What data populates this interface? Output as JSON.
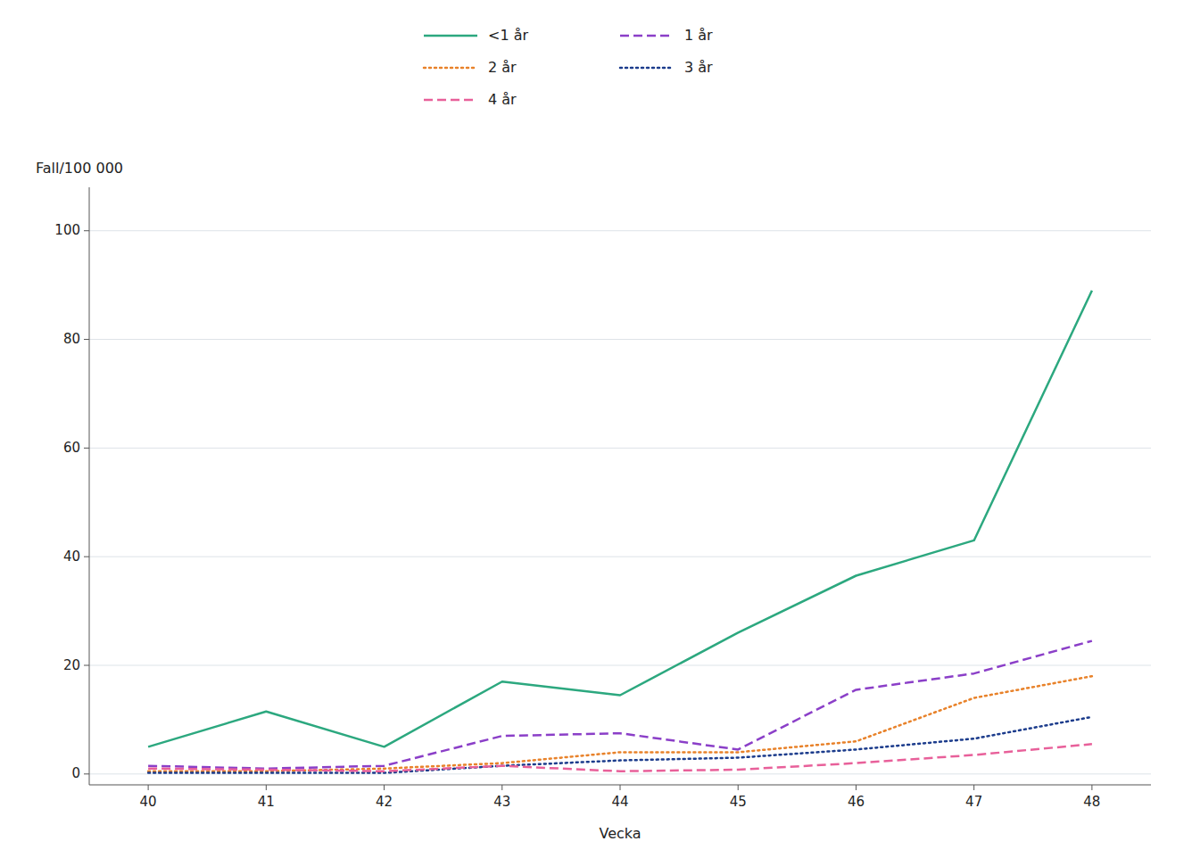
{
  "chart_data": {
    "type": "line",
    "xlabel": "Vecka",
    "ylabel": "Fall/100 000",
    "x": [
      40,
      41,
      42,
      43,
      44,
      45,
      46,
      47,
      48
    ],
    "series": [
      {
        "name": "<1 år",
        "color": "#2ca87f",
        "line_style": "solid",
        "values": [
          5.0,
          11.5,
          5.0,
          17.0,
          14.5,
          26.0,
          36.5,
          43.0,
          89.0
        ]
      },
      {
        "name": "1 år",
        "color": "#8B3FC8",
        "line_style": "dashed",
        "values": [
          1.5,
          1.0,
          1.5,
          7.0,
          7.5,
          4.5,
          15.5,
          18.5,
          24.5
        ]
      },
      {
        "name": "2 år",
        "color": "#E8822A",
        "line_style": "dotted",
        "values": [
          0.5,
          0.5,
          1.0,
          2.0,
          4.0,
          4.0,
          6.0,
          14.0,
          18.0
        ]
      },
      {
        "name": "3 år",
        "color": "#1C3C8C",
        "line_style": "dotted",
        "values": [
          0.2,
          0.2,
          0.2,
          1.5,
          2.5,
          3.0,
          4.5,
          6.5,
          10.5
        ]
      },
      {
        "name": "4 år",
        "color": "#E8609A",
        "line_style": "dashed",
        "values": [
          1.0,
          0.8,
          0.5,
          1.5,
          0.5,
          0.8,
          2.0,
          3.5,
          5.5
        ]
      }
    ],
    "xlim": [
      39.5,
      48.5
    ],
    "xticks": [
      40,
      41,
      42,
      43,
      44,
      45,
      46,
      47,
      48
    ],
    "ylim": [
      -2,
      108
    ],
    "yticks": [
      0,
      20,
      40,
      60,
      80,
      100
    ],
    "grid": true,
    "legend": "top"
  }
}
